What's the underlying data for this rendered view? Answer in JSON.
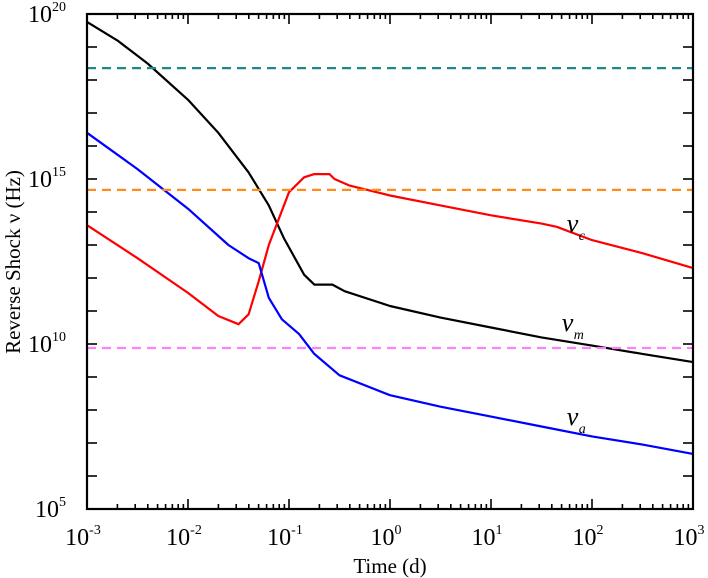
{
  "chart_data": {
    "type": "line",
    "title": "",
    "xlabel": "Time (d)",
    "ylabel": "Reverse Shock ν (Hz)",
    "xscale": "log",
    "yscale": "log",
    "xlim": [
      0.001,
      1000
    ],
    "ylim": [
      100000.0,
      1e+20
    ],
    "x_ticks": [
      {
        "base": "10",
        "exp": "-3"
      },
      {
        "base": "10",
        "exp": "-2"
      },
      {
        "base": "10",
        "exp": "-1"
      },
      {
        "base": "10",
        "exp": "0"
      },
      {
        "base": "10",
        "exp": "1"
      },
      {
        "base": "10",
        "exp": "2"
      },
      {
        "base": "10",
        "exp": "3"
      }
    ],
    "y_ticks": [
      {
        "base": "10",
        "exp": "5"
      },
      {
        "base": "10",
        "exp": "10"
      },
      {
        "base": "10",
        "exp": "15"
      },
      {
        "base": "10",
        "exp": "20"
      }
    ],
    "grid": false,
    "legend": "none (inline curve labels)",
    "series": [
      {
        "name": "ν_m",
        "label_main": "ν",
        "label_sub": "m",
        "color": "#000000",
        "style": "solid",
        "log10_t": [
          -3,
          -2.7,
          -2.4,
          -2.0,
          -1.7,
          -1.4,
          -1.2,
          -1.05,
          -0.85,
          -0.75,
          -0.57,
          -0.45,
          0,
          0.5,
          1,
          1.5,
          2,
          2.5,
          3
        ],
        "log10_nu": [
          19.76,
          19.2,
          18.5,
          17.4,
          16.4,
          15.2,
          14.2,
          13.2,
          12.1,
          11.8,
          11.8,
          11.6,
          11.15,
          10.8,
          10.5,
          10.2,
          9.95,
          9.7,
          9.45
        ]
      },
      {
        "name": "ν_c",
        "label_main": "ν",
        "label_sub": "c",
        "color": "#ff0000",
        "style": "solid",
        "log10_t": [
          -3,
          -2.5,
          -2.0,
          -1.7,
          -1.5,
          -1.4,
          -1.3,
          -1.2,
          -1.0,
          -0.85,
          -0.75,
          -0.6,
          -0.55,
          -0.4,
          0,
          0.5,
          1,
          1.5,
          1.65,
          2,
          2.5,
          3
        ],
        "log10_nu": [
          13.6,
          12.6,
          11.55,
          10.85,
          10.6,
          10.9,
          11.9,
          13.0,
          14.6,
          15.05,
          15.15,
          15.15,
          15.0,
          14.8,
          14.5,
          14.2,
          13.9,
          13.65,
          13.55,
          13.15,
          12.75,
          12.3
        ]
      },
      {
        "name": "ν_a",
        "label_main": "ν",
        "label_sub": "a",
        "color": "#0000ff",
        "style": "solid",
        "log10_t": [
          -3,
          -2.5,
          -2.0,
          -1.6,
          -1.4,
          -1.3,
          -1.2,
          -1.07,
          -0.9,
          -0.75,
          -0.5,
          0,
          0.5,
          1,
          1.5,
          2,
          2.5,
          3
        ],
        "log10_nu": [
          16.4,
          15.3,
          14.1,
          13.0,
          12.6,
          12.45,
          11.4,
          10.75,
          10.3,
          9.7,
          9.05,
          8.45,
          8.1,
          7.8,
          7.5,
          7.2,
          6.95,
          6.67
        ]
      },
      {
        "name": "reference line (teal)",
        "color": "#1a8a8a",
        "style": "dashed",
        "log10_t": [
          -3,
          3
        ],
        "log10_nu": [
          18.36,
          18.36
        ]
      },
      {
        "name": "reference line (orange)",
        "color": "#ff8c1a",
        "style": "dashed",
        "log10_t": [
          -3,
          3
        ],
        "log10_nu": [
          14.67,
          14.67
        ]
      },
      {
        "name": "reference line (violet)",
        "color": "#ff80ff",
        "style": "dashed",
        "log10_t": [
          -3,
          3
        ],
        "log10_nu": [
          9.88,
          9.88
        ]
      }
    ],
    "annotations": [
      {
        "text_main": "ν",
        "text_sub": "c",
        "log10_t": 1.75,
        "log10_nu": 13.4
      },
      {
        "text_main": "ν",
        "text_sub": "m",
        "log10_t": 1.7,
        "log10_nu": 10.4
      },
      {
        "text_main": "ν",
        "text_sub": "a",
        "log10_t": 1.75,
        "log10_nu": 7.55
      }
    ]
  }
}
